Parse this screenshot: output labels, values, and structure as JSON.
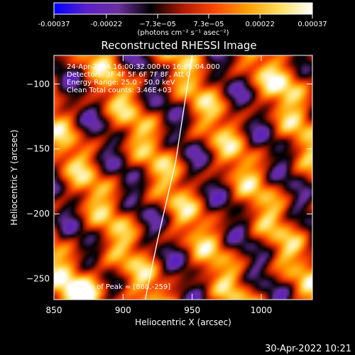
{
  "chart_data": {
    "type": "heatmap",
    "title": "Reconstructed RHESSI Image",
    "xlabel": "Heliocentric X (arcsec)",
    "ylabel": "Heliocentric Y (arcsec)",
    "xlim": [
      850,
      1037
    ],
    "ylim": [
      -266,
      -78
    ],
    "x_ticks": [
      850,
      900,
      950,
      1000
    ],
    "y_ticks": [
      -250,
      -200,
      -150,
      -100
    ],
    "colorbar": {
      "range": [
        -0.00037,
        0.00037
      ],
      "tick_values": [
        -0.00037,
        -0.00022,
        -7.3e-05,
        7.3e-05,
        0.00022,
        0.00037
      ],
      "tick_labels": [
        "-0.00037",
        "-0.00022",
        "−7.3e−05",
        "7.3e−05",
        "0.00022",
        "0.00037"
      ],
      "unit_label": "(photons cm⁻² s⁻¹ asec⁻²)",
      "colormap": [
        "#0000ff",
        "#5a20c8",
        "#6a2f9c",
        "#000000",
        "#b01800",
        "#ff4a00",
        "#ffa000",
        "#ffe060",
        "#ffffff"
      ]
    },
    "annotations": [
      "24-Apr-2004 16:00:32.000 to 16:05:04.000",
      "Detectors: 3F 4F 5F 6F 7F 8F, Att 0",
      "Energy Range: 25.0 - 50.0 keV",
      "Clean     Total counts: 3.46E+03"
    ],
    "peak_label": "Position of Peak = [868,-259]",
    "peak": [
      868,
      -259
    ],
    "limb_curve": [
      [
        916,
        -266
      ],
      [
        925,
        -220
      ],
      [
        938,
        -160
      ],
      [
        950,
        -78
      ]
    ]
  },
  "footer": {
    "timestamp": "30-Apr-2022 10:21"
  }
}
